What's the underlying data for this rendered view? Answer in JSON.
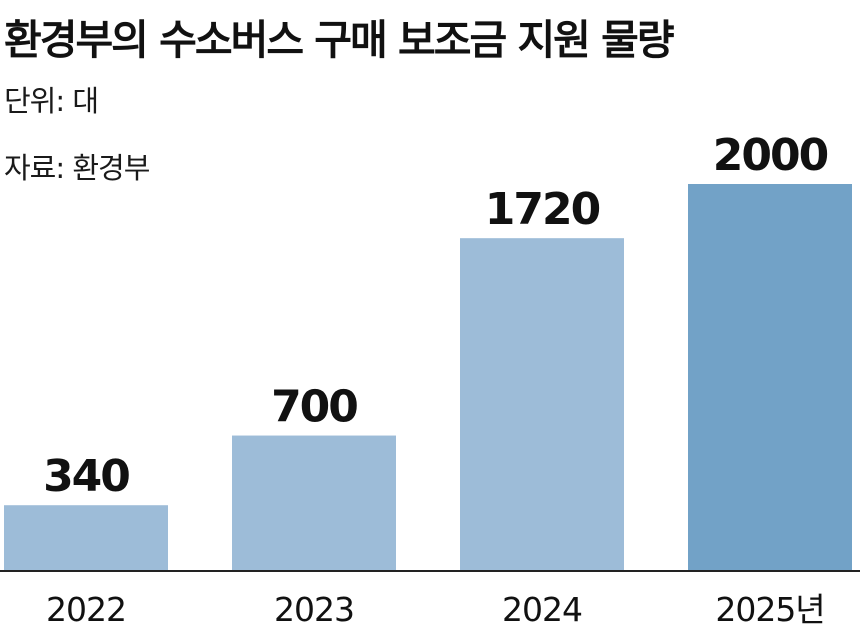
{
  "title": "환경부의 수소버스 구매 보조금 지원 물량",
  "unit_text": "단위: 대",
  "source_text": "자료: 환경부",
  "chart_data": {
    "type": "bar",
    "title": "환경부의 수소버스 구매 보조금 지원 물량",
    "categories": [
      "2022",
      "2023",
      "2024",
      "2025년"
    ],
    "values": [
      340,
      700,
      1720,
      2000
    ],
    "value_labels": [
      "340",
      "700",
      "1720",
      "2000"
    ],
    "xlabel": "",
    "ylabel": "",
    "ylim": [
      0,
      2000
    ],
    "grid": false,
    "legend": "none",
    "colors": [
      "#9dbcd8",
      "#9dbcd8",
      "#9dbcd8",
      "#72a2c7"
    ],
    "axis_color": "#222222",
    "label_color": "#111111"
  }
}
